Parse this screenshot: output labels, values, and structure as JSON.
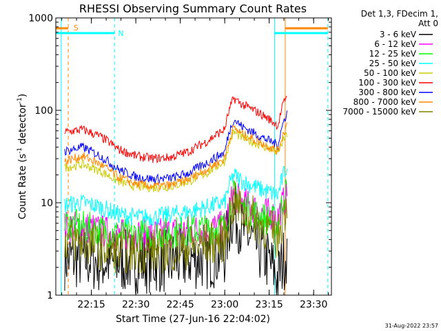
{
  "chart_data": {
    "type": "line",
    "title": "RHESSI Observing Summary Count Rates",
    "xlabel": "Start Time (27-Jun-16 22:04:02)",
    "ylabel_main": "Count Rate (s",
    "ylabel_sup1": "-1",
    "ylabel_mid": " detector",
    "ylabel_sup2": "-1",
    "ylabel_end": ")",
    "y_scale": "log",
    "ylim": [
      1,
      1000
    ],
    "xlim_minutes": [
      22.05,
      23.6
    ],
    "yticks": [
      {
        "value": 1,
        "label": "1"
      },
      {
        "value": 10,
        "label": "10"
      },
      {
        "value": 100,
        "label": "100"
      },
      {
        "value": 1000,
        "label": "1000"
      }
    ],
    "xticks": [
      {
        "value": 22.25,
        "label": "22:15"
      },
      {
        "value": 22.5,
        "label": "22:30"
      },
      {
        "value": 22.75,
        "label": "22:45"
      },
      {
        "value": 23.0,
        "label": "23:00"
      },
      {
        "value": 23.25,
        "label": "23:15"
      },
      {
        "value": 23.5,
        "label": "23:30"
      }
    ],
    "legend_header": [
      "Det 1,3, FDecim 1,",
      "Att 0"
    ],
    "legend_position": "right",
    "series": [
      {
        "name": "3 - 6 keV",
        "color": "#000000",
        "x": [
          22.1,
          22.2,
          22.3,
          22.4,
          22.5,
          22.6,
          22.7,
          22.8,
          22.9,
          23.0,
          23.05,
          23.1,
          23.2,
          23.3,
          23.35
        ],
        "values": [
          2.5,
          2.5,
          2.3,
          2.3,
          2.3,
          2.3,
          2.3,
          2.5,
          2.5,
          2.8,
          8,
          5,
          3,
          1.5,
          3
        ]
      },
      {
        "name": "6 - 12 keV",
        "color": "#ff00ff",
        "x": [
          22.1,
          22.2,
          22.3,
          22.4,
          22.5,
          22.6,
          22.7,
          22.8,
          22.9,
          23.0,
          23.05,
          23.1,
          23.2,
          23.3,
          23.35
        ],
        "values": [
          5.5,
          5.5,
          5,
          4.5,
          4.5,
          4.5,
          4.8,
          5,
          5.2,
          5.5,
          12,
          10,
          8,
          7,
          12
        ]
      },
      {
        "name": "12 - 25 keV",
        "color": "#00ff00",
        "x": [
          22.1,
          22.2,
          22.3,
          22.4,
          22.5,
          22.6,
          22.7,
          22.8,
          22.9,
          23.0,
          23.05,
          23.1,
          23.2,
          23.3,
          23.35
        ],
        "values": [
          6,
          5.5,
          5,
          4.5,
          4.5,
          4.5,
          4.8,
          5,
          5.2,
          5.5,
          12,
          9,
          7,
          6,
          14
        ]
      },
      {
        "name": "25 - 50 keV",
        "color": "#00ffff",
        "x": [
          22.1,
          22.2,
          22.3,
          22.4,
          22.5,
          22.6,
          22.7,
          22.8,
          22.9,
          23.0,
          23.05,
          23.1,
          23.2,
          23.3,
          23.35
        ],
        "values": [
          9.5,
          10,
          9,
          7.5,
          7,
          7,
          7.5,
          8,
          9,
          10,
          20,
          17,
          14,
          12,
          25
        ]
      },
      {
        "name": "50 - 100 keV",
        "color": "#cccc00",
        "x": [
          22.1,
          22.2,
          22.3,
          22.4,
          22.5,
          22.6,
          22.7,
          22.8,
          22.9,
          23.0,
          23.05,
          23.1,
          23.2,
          23.3,
          23.35
        ],
        "values": [
          24,
          26,
          22,
          17,
          15,
          14.5,
          15,
          17,
          21,
          28,
          58,
          50,
          42,
          35,
          55
        ]
      },
      {
        "name": "100 - 300 keV",
        "color": "#ff0000",
        "x": [
          22.1,
          22.2,
          22.3,
          22.4,
          22.5,
          22.6,
          22.7,
          22.8,
          22.9,
          23.0,
          23.05,
          23.1,
          23.2,
          23.3,
          23.35
        ],
        "values": [
          58,
          62,
          52,
          38,
          32,
          30,
          31,
          36,
          46,
          62,
          135,
          115,
          92,
          68,
          150
        ]
      },
      {
        "name": "300 - 800 keV",
        "color": "#0000ff",
        "x": [
          22.1,
          22.2,
          22.3,
          22.4,
          22.5,
          22.6,
          22.7,
          22.8,
          22.9,
          23.0,
          23.05,
          23.1,
          23.2,
          23.3,
          23.35
        ],
        "values": [
          36,
          40,
          32,
          23,
          19,
          18,
          18.5,
          21,
          27,
          35,
          80,
          66,
          52,
          42,
          95
        ]
      },
      {
        "name": "800 - 7000 keV",
        "color": "#ff8800",
        "x": [
          22.1,
          22.2,
          22.3,
          22.4,
          22.5,
          22.6,
          22.7,
          22.8,
          22.9,
          23.0,
          23.05,
          23.1,
          23.2,
          23.3,
          23.35
        ],
        "values": [
          28,
          32,
          26,
          19,
          16,
          15,
          15.5,
          18,
          23,
          30,
          65,
          55,
          45,
          36,
          70
        ]
      },
      {
        "name": "7000 - 15000 keV",
        "color": "#808000",
        "x": [
          22.1,
          22.2,
          22.3,
          22.4,
          22.5,
          22.6,
          22.7,
          22.8,
          22.9,
          23.0,
          23.05,
          23.1,
          23.2,
          23.3,
          23.35
        ],
        "values": [
          4,
          3.8,
          3.3,
          3,
          3,
          3,
          3.1,
          3.3,
          3.6,
          4,
          10,
          8,
          6,
          4,
          10
        ]
      }
    ],
    "flag_markers": [
      {
        "label": "S",
        "color": "#ff8800"
      },
      {
        "label": "N",
        "color": "#00ffff"
      }
    ],
    "vertical_markers": [
      {
        "x": 22.08,
        "color": "#00ffff",
        "style": "solid"
      },
      {
        "x": 22.12,
        "color": "#ff8800",
        "style": "dashed"
      },
      {
        "x": 22.38,
        "color": "#00ffff",
        "style": "dashed"
      },
      {
        "x": 23.28,
        "color": "#00ffff",
        "style": "solid"
      },
      {
        "x": 23.34,
        "color": "#ff8800",
        "style": "solid"
      },
      {
        "x": 23.58,
        "color": "#00ffff",
        "style": "dashed"
      }
    ],
    "flag_bars": [
      {
        "x_start": 22.05,
        "x_end": 22.12,
        "color": "#ff8800",
        "level": "upper"
      },
      {
        "x_start": 22.05,
        "x_end": 22.38,
        "color": "#00ffff",
        "level": "lower"
      },
      {
        "x_start": 23.34,
        "x_end": 23.58,
        "color": "#ff8800",
        "level": "upper"
      },
      {
        "x_start": 23.28,
        "x_end": 23.58,
        "color": "#00ffff",
        "level": "lower"
      }
    ]
  },
  "footer": {
    "timestamp": "31-Aug-2022 23:57"
  }
}
